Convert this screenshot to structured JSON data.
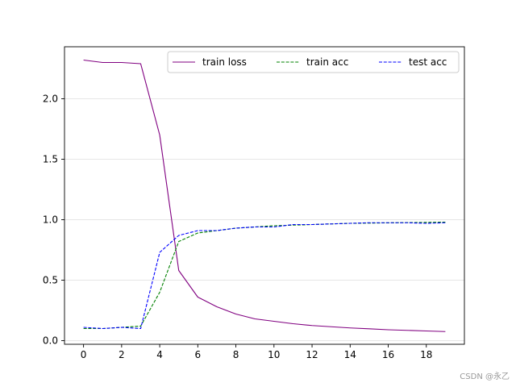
{
  "chart_data": {
    "type": "line",
    "title": "",
    "xlabel": "",
    "ylabel": "",
    "xlim": [
      -1,
      20
    ],
    "ylim": [
      -0.03,
      2.43
    ],
    "xticks": [
      0,
      2,
      4,
      6,
      8,
      10,
      12,
      14,
      16,
      18
    ],
    "yticks": [
      0.0,
      0.5,
      1.0,
      1.5,
      2.0
    ],
    "ytick_labels": [
      "0.0",
      "0.5",
      "1.0",
      "1.5",
      "2.0"
    ],
    "grid": "horizontal",
    "legend": {
      "placement": "top-right",
      "columns": 3
    },
    "x": [
      0,
      1,
      2,
      3,
      4,
      5,
      6,
      7,
      8,
      9,
      10,
      11,
      12,
      13,
      14,
      15,
      16,
      17,
      18,
      19
    ],
    "series": [
      {
        "name": "train loss",
        "color": "#800080",
        "linestyle": "solid",
        "values": [
          2.32,
          2.3,
          2.3,
          2.29,
          1.7,
          0.58,
          0.36,
          0.28,
          0.22,
          0.18,
          0.16,
          0.14,
          0.125,
          0.115,
          0.105,
          0.098,
          0.09,
          0.085,
          0.08,
          0.075
        ]
      },
      {
        "name": "train acc",
        "color": "#008000",
        "linestyle": "dashed",
        "values": [
          0.1,
          0.1,
          0.11,
          0.12,
          0.4,
          0.82,
          0.89,
          0.91,
          0.93,
          0.94,
          0.95,
          0.955,
          0.96,
          0.965,
          0.97,
          0.972,
          0.974,
          0.976,
          0.978,
          0.98
        ]
      },
      {
        "name": "test acc",
        "color": "#0000ff",
        "linestyle": "dashed",
        "values": [
          0.11,
          0.1,
          0.11,
          0.1,
          0.73,
          0.87,
          0.91,
          0.91,
          0.93,
          0.94,
          0.94,
          0.96,
          0.96,
          0.965,
          0.97,
          0.975,
          0.975,
          0.975,
          0.97,
          0.975
        ]
      }
    ]
  },
  "watermark": "CSDN @永乙"
}
